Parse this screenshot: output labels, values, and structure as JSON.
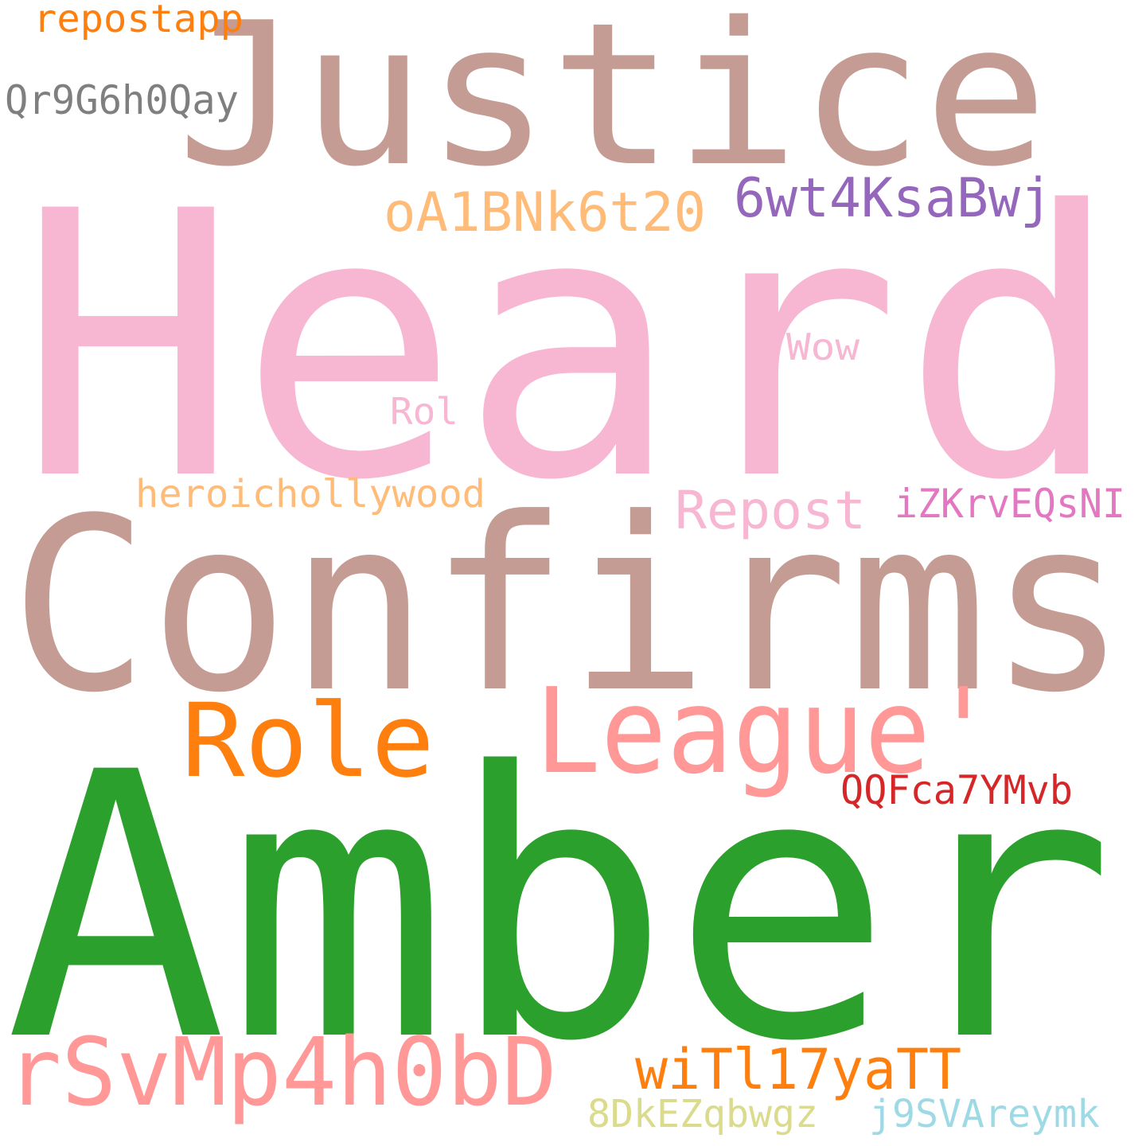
{
  "words": [
    {
      "id": "justice",
      "text": "Justice",
      "color": "#c49c94"
    },
    {
      "id": "heard",
      "text": "Heard",
      "color": "#f7b6d2"
    },
    {
      "id": "confirms",
      "text": "Confirms",
      "color": "#c49c94"
    },
    {
      "id": "amber",
      "text": "Amber",
      "color": "#2ca02c"
    },
    {
      "id": "league",
      "text": "League'",
      "color": "#ff9896"
    },
    {
      "id": "role",
      "text": "Role",
      "color": "#ff7f0e"
    },
    {
      "id": "rsvmp4h0bd",
      "text": "rSvMp4h0bD",
      "color": "#ff9896"
    },
    {
      "id": "witl17yatt",
      "text": "wiTl17yaTT",
      "color": "#ff7f0e"
    },
    {
      "id": "6wt4ksabwj",
      "text": "6wt4KsaBwj",
      "color": "#9467bd"
    },
    {
      "id": "oa1bnk6t20",
      "text": "oA1BNk6t20",
      "color": "#ffbb78"
    },
    {
      "id": "repost",
      "text": "Repost",
      "color": "#f7b6d2"
    },
    {
      "id": "heroichollywood",
      "text": "heroichollywood",
      "color": "#ffbb78"
    },
    {
      "id": "izkrveqsni",
      "text": "iZKrvEQsNI",
      "color": "#e377c2"
    },
    {
      "id": "qqfca7ymvb",
      "text": "QQFca7YMvb",
      "color": "#d62728"
    },
    {
      "id": "qr9g6h0qay",
      "text": "Qr9G6h0Qay",
      "color": "#7f7f7f"
    },
    {
      "id": "repostapp",
      "text": "repostapp",
      "color": "#ff7f0e"
    },
    {
      "id": "wow",
      "text": "Wow",
      "color": "#f7b6d2"
    },
    {
      "id": "rol",
      "text": "Rol",
      "color": "#f7b6d2"
    },
    {
      "id": "8dkezqbwgz",
      "text": "8DkEZqbwgz",
      "color": "#dbdb8d"
    },
    {
      "id": "j9svareymk",
      "text": "j9SVAreymk",
      "color": "#9edae5"
    }
  ]
}
